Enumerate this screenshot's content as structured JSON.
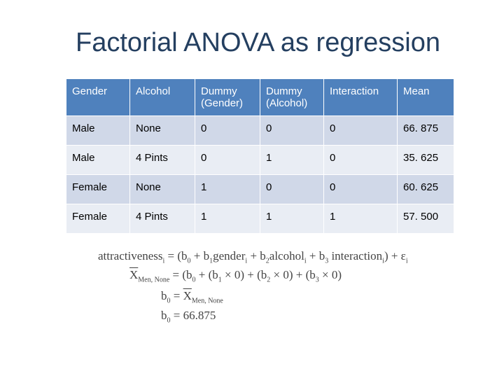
{
  "header": {
    "title": "Factorial ANOVA as regression"
  },
  "table": {
    "header": [
      "Gender",
      "Alcohol",
      "Dummy (Gender)",
      "Dummy (Alcohol)",
      "Interaction",
      "Mean"
    ],
    "rows": [
      [
        "Male",
        "None",
        "0",
        "0",
        "0",
        "66. 875"
      ],
      [
        "Male",
        "4 Pints",
        "0",
        "1",
        "0",
        "35. 625"
      ],
      [
        "Female",
        "None",
        "1",
        "0",
        "0",
        "60. 625"
      ],
      [
        "Female",
        "4 Pints",
        "1",
        "1",
        "1",
        "57. 500"
      ]
    ]
  },
  "equations": [
    [
      {
        "text": "attractiveness",
        "sub": "i"
      },
      {
        "text": " = (b",
        "sub": "0"
      },
      {
        "text": " + b",
        "sub": "1"
      },
      {
        "text": "gender",
        "sub": "i"
      },
      {
        "text": " + b",
        "sub": "2"
      },
      {
        "text": "alcohol",
        "sub": "i"
      },
      {
        "text": " + b",
        "sub": "3"
      },
      {
        "text": " interaction",
        "sub": "i"
      },
      {
        "text": ") + ε",
        "sub": "i"
      }
    ],
    [
      {
        "text": "X",
        "sub": "Men, None",
        "bar": true
      },
      {
        "text": " = (b",
        "sub": "0"
      },
      {
        "text": " + (b",
        "sub": "1"
      },
      {
        "text": " × 0) + (b",
        "sub": "2"
      },
      {
        "text": " × 0) + (b",
        "sub": "3"
      },
      {
        "text": " × 0)"
      }
    ],
    [
      {
        "text": "b",
        "sub": "0"
      },
      {
        "text": " = "
      },
      {
        "text": "X",
        "sub": "Men, None",
        "bar": true
      }
    ],
    [
      {
        "text": "b",
        "sub": "0"
      },
      {
        "text": " = 66.875"
      }
    ]
  ]
}
